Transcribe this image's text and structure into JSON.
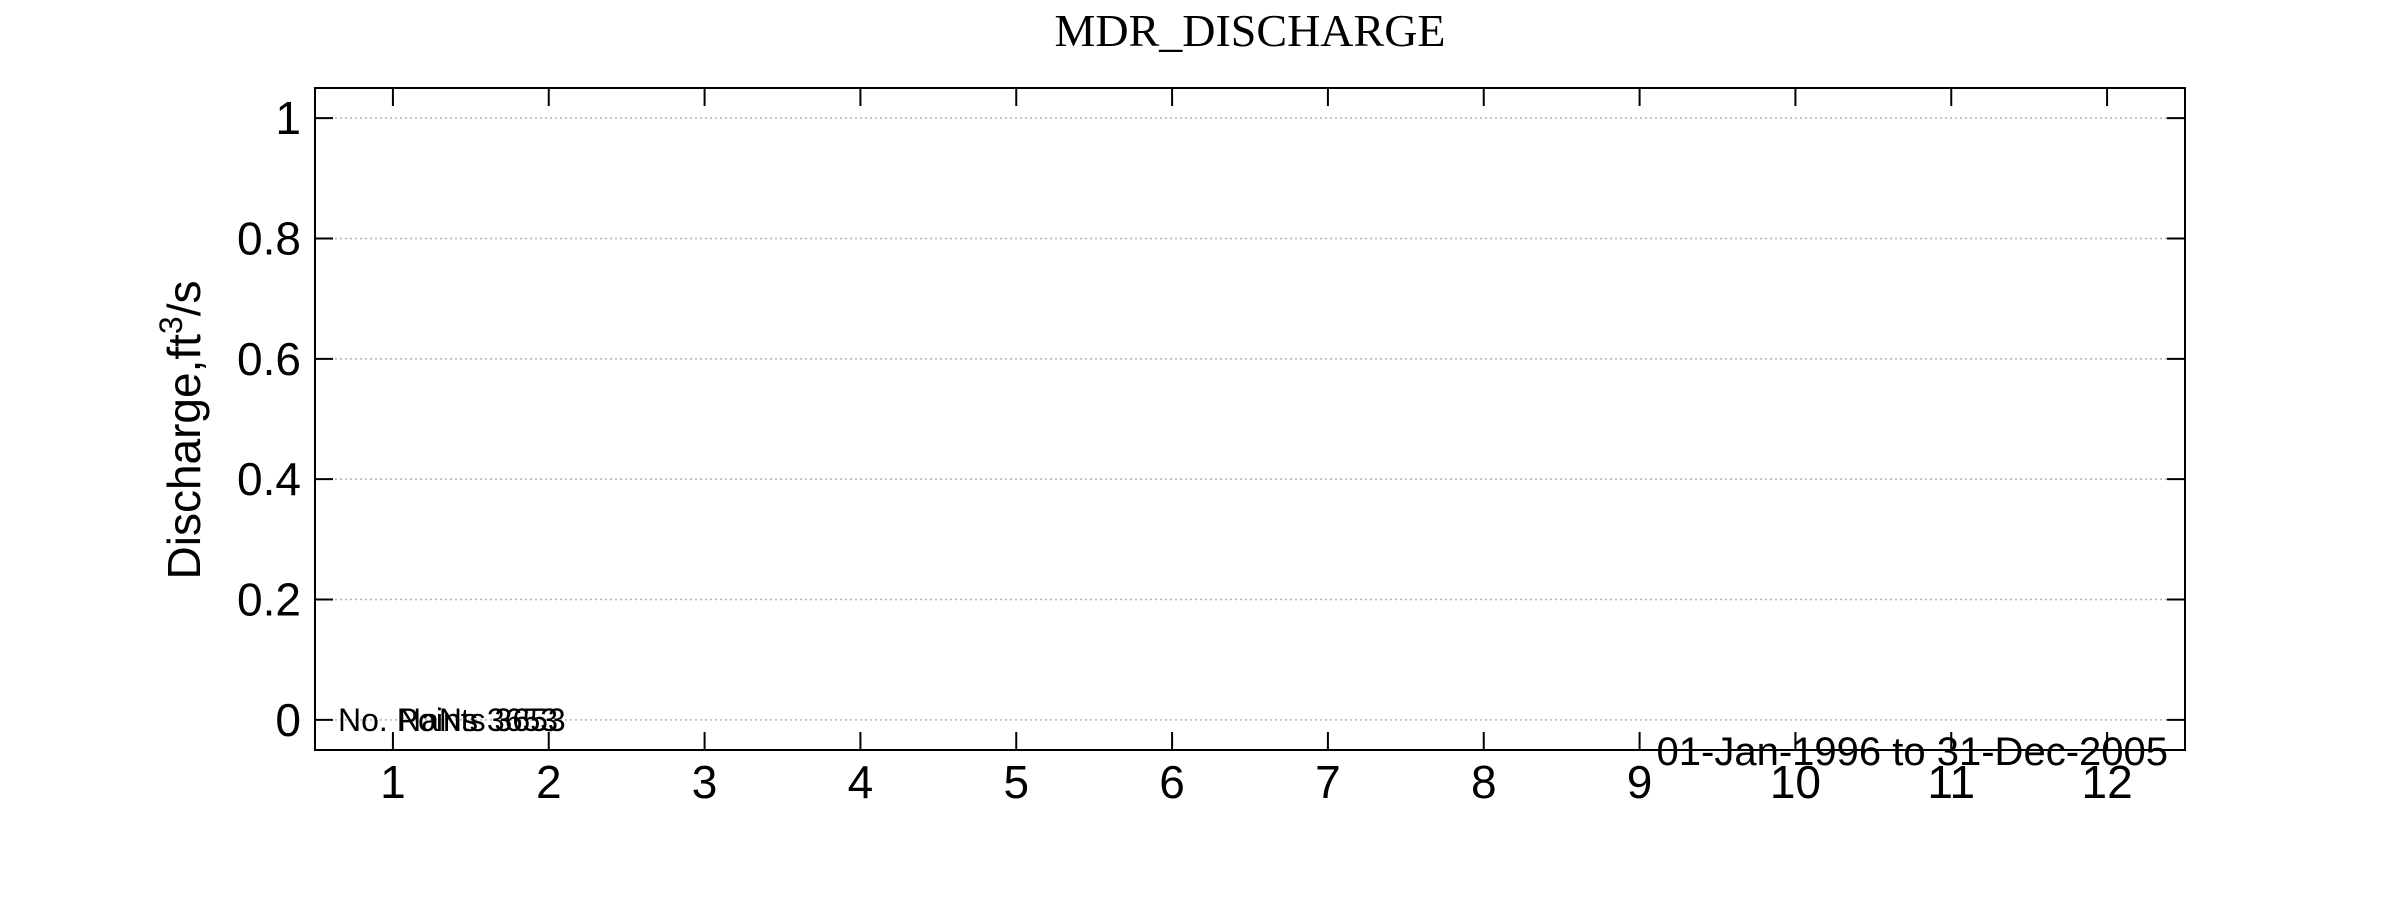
{
  "chart_data": {
    "type": "line",
    "title": "MDR_DISCHARGE",
    "ylabel_prefix": "Discharge,ft",
    "ylabel_sup": "3",
    "ylabel_suffix": "/s",
    "xlabel": "",
    "x_ticks": [
      "1",
      "2",
      "3",
      "4",
      "5",
      "6",
      "7",
      "8",
      "9",
      "10",
      "11",
      "12"
    ],
    "y_ticks": [
      "0",
      "0.2",
      "0.4",
      "0.6",
      "0.8",
      "1"
    ],
    "y_tick_values": [
      0,
      0.2,
      0.4,
      0.6,
      0.8,
      1
    ],
    "xlim": [
      0.5,
      12.5
    ],
    "ylim": [
      -0.05,
      1.05
    ],
    "grid": true,
    "series": [],
    "annotations": {
      "points_a": "No. Points 3653",
      "points_b": "NaNs 3653",
      "date_range": "01-Jan-1996 to 31-Dec-2005"
    }
  }
}
